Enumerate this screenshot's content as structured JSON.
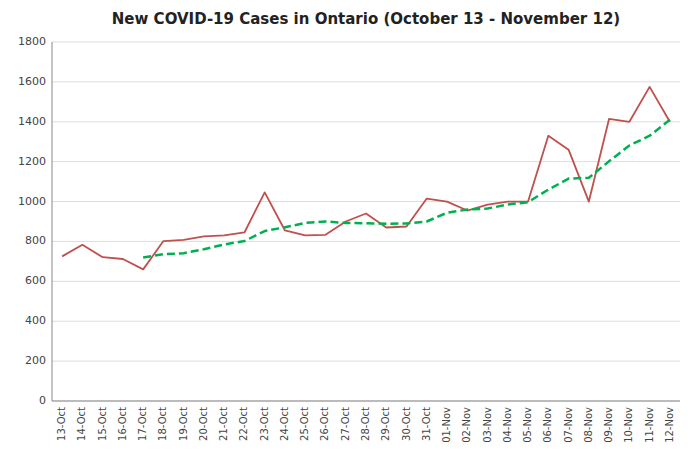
{
  "chart_data": {
    "type": "line",
    "title": "New COVID-19 Cases in Ontario (October 13 - November 12)",
    "categories": [
      "13-Oct",
      "14-Oct",
      "15-Oct",
      "16-Oct",
      "17-Oct",
      "18-Oct",
      "19-Oct",
      "20-Oct",
      "21-Oct",
      "22-Oct",
      "23-Oct",
      "24-Oct",
      "25-Oct",
      "26-Oct",
      "27-Oct",
      "28-Oct",
      "29-Oct",
      "30-Oct",
      "31-Oct",
      "01-Nov",
      "02-Nov",
      "03-Nov",
      "04-Nov",
      "05-Nov",
      "06-Nov",
      "07-Nov",
      "08-Nov",
      "09-Nov",
      "10-Nov",
      "11-Nov",
      "12-Nov"
    ],
    "series": [
      {
        "color": "#c0504d",
        "line_style": "solid",
        "values": [
          725,
          783,
          721,
          712,
          660,
          802,
          808,
          825,
          830,
          845,
          1046,
          855,
          830,
          833,
          900,
          940,
          870,
          875,
          1015,
          1000,
          955,
          985,
          1000,
          1000,
          1330,
          1260,
          1000,
          1415,
          1400,
          1575,
          1400
        ]
      },
      {
        "color": "#00b050",
        "line_style": "dashed",
        "values": [
          null,
          null,
          null,
          null,
          720,
          736,
          741,
          761,
          785,
          802,
          852,
          871,
          893,
          900,
          893,
          891,
          889,
          890,
          900,
          944,
          960,
          965,
          985,
          997,
          1060,
          1115,
          1119,
          1202,
          1281,
          1330,
          1410
        ]
      }
    ],
    "ylim": [
      0,
      1800
    ],
    "yticks": [
      0,
      200,
      400,
      600,
      800,
      1000,
      1200,
      1400,
      1600,
      1800
    ],
    "grid": true
  }
}
